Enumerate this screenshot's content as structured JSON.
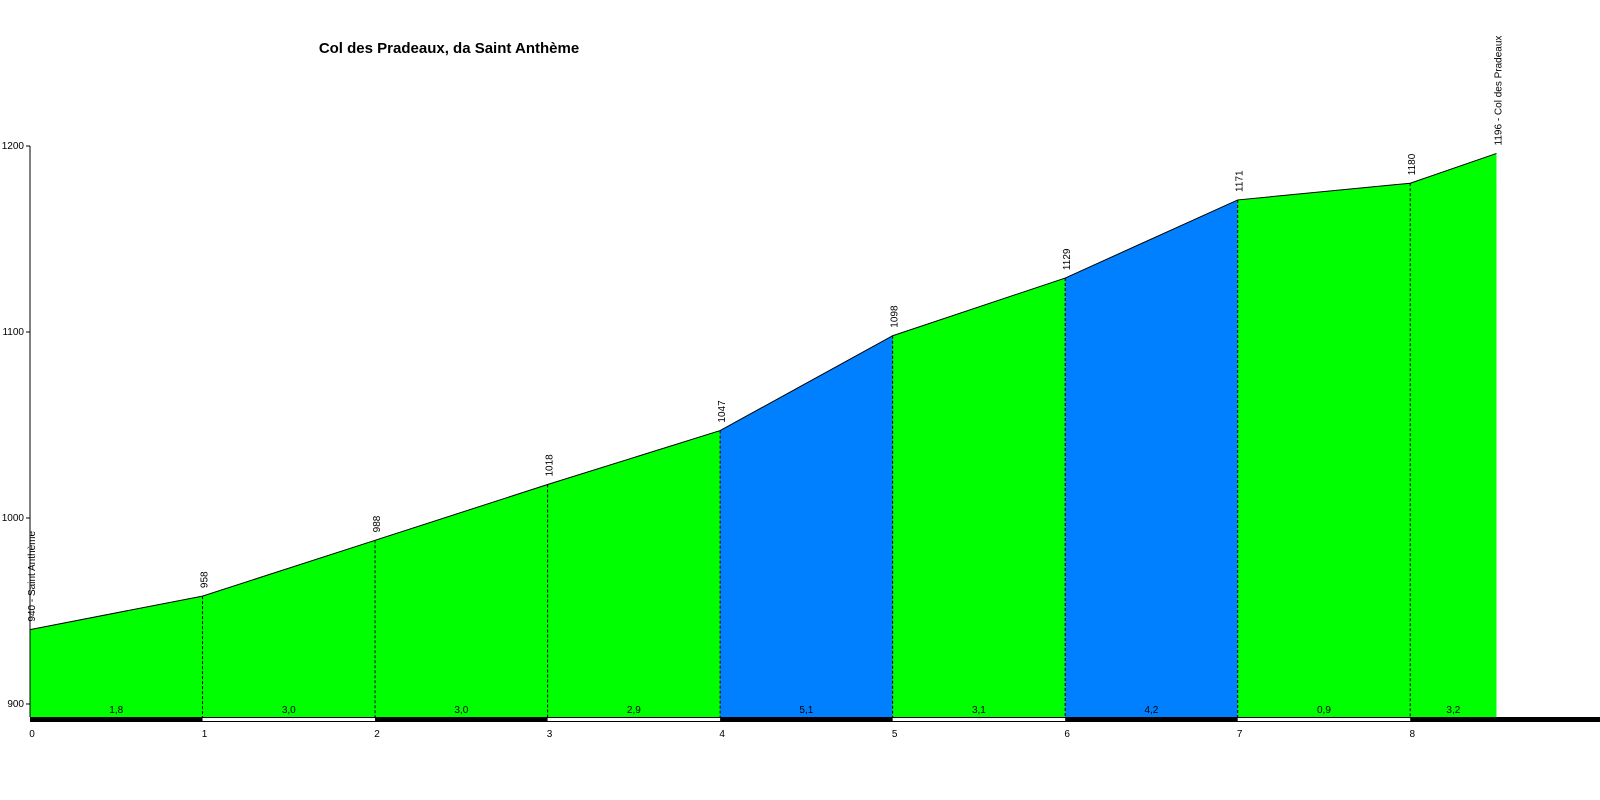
{
  "chart_data": {
    "type": "elevation-profile",
    "title": "Col des Pradeaux, da Saint Anthème",
    "x": [
      0,
      1,
      2,
      3,
      4,
      5,
      6,
      7,
      8,
      8.5
    ],
    "values": [
      940,
      958,
      988,
      1018,
      1047,
      1098,
      1129,
      1171,
      1180,
      1196
    ],
    "value_labels": [
      "940 - Saint Anthème",
      "958",
      "988",
      "1018",
      "1047",
      "1098",
      "1129",
      "1171",
      "1180",
      "1196 - Col des Pradeaux"
    ],
    "segments": [
      {
        "value": 1.8,
        "label": "1,8",
        "color": "#00ff00"
      },
      {
        "value": 3.0,
        "label": "3,0",
        "color": "#00ff00"
      },
      {
        "value": 3.0,
        "label": "3,0",
        "color": "#00ff00"
      },
      {
        "value": 2.9,
        "label": "2,9",
        "color": "#00ff00"
      },
      {
        "value": 5.1,
        "label": "5,1",
        "color": "#0080ff"
      },
      {
        "value": 3.1,
        "label": "3,1",
        "color": "#00ff00"
      },
      {
        "value": 4.2,
        "label": "4,2",
        "color": "#0080ff"
      },
      {
        "value": 0.9,
        "label": "0,9",
        "color": "#00ff00"
      },
      {
        "value": 3.2,
        "label": "3,2",
        "color": "#00ff00"
      }
    ],
    "xlim": [
      0,
      9.1
    ],
    "xticks": [
      0,
      1,
      2,
      3,
      4,
      5,
      6,
      7,
      8
    ],
    "ylim": [
      893,
      1200
    ],
    "yticks": [
      900,
      1000,
      1100,
      1200
    ]
  }
}
